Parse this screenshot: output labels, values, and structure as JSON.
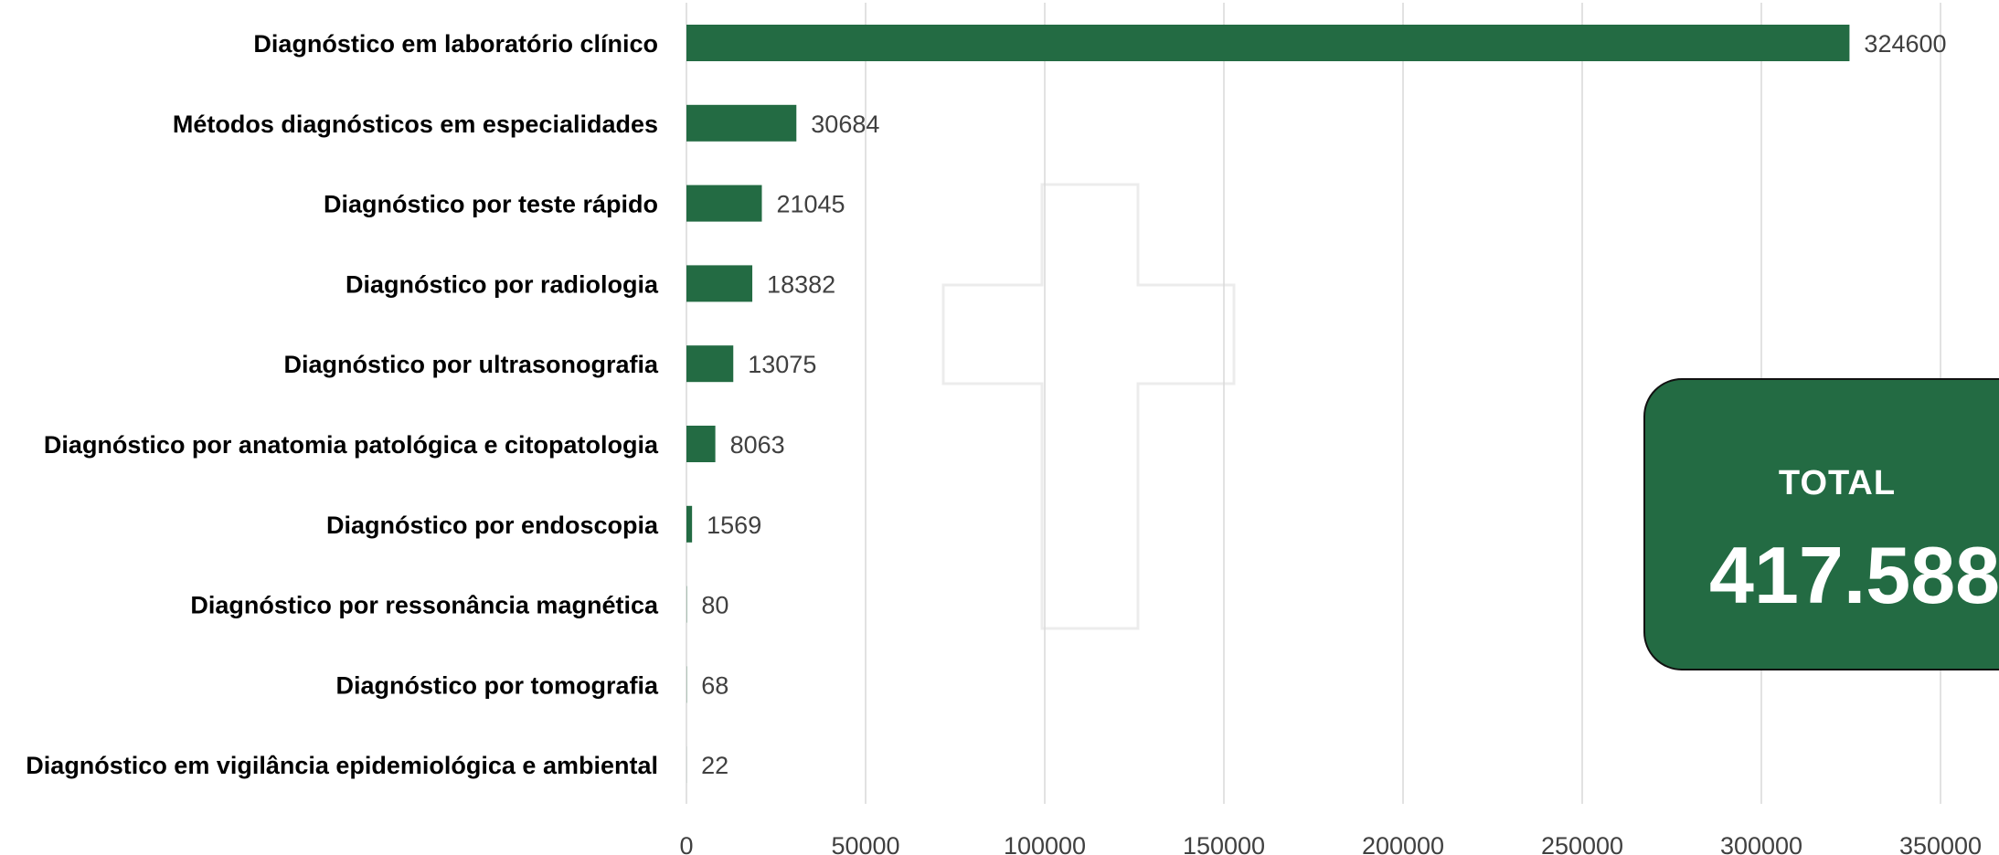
{
  "chart_data": {
    "type": "bar",
    "orientation": "horizontal",
    "categories": [
      "Diagnóstico em laboratório clínico",
      "Métodos diagnósticos em especialidades",
      "Diagnóstico por teste rápido",
      "Diagnóstico por radiologia",
      "Diagnóstico por ultrasonografia",
      "Diagnóstico por anatomia patológica e citopatologia",
      "Diagnóstico por endoscopia",
      "Diagnóstico por ressonância magnética",
      "Diagnóstico por tomografia",
      "Diagnóstico em vigilância epidemiológica e ambiental"
    ],
    "values": [
      324600,
      30684,
      21045,
      18382,
      13075,
      8063,
      1569,
      80,
      68,
      22
    ],
    "data_labels": [
      "324600",
      "30684",
      "21045",
      "18382",
      "13075",
      "8063",
      "1569",
      "80",
      "68",
      "22"
    ],
    "xlim": [
      0,
      350000
    ],
    "xticks": [
      0,
      50000,
      100000,
      150000,
      200000,
      250000,
      300000,
      350000
    ],
    "xtick_labels": [
      "0",
      "50000",
      "100000",
      "150000",
      "200000",
      "250000",
      "300000",
      "350000"
    ],
    "grid": "vertical",
    "bar_color": "#236b43"
  },
  "total_box": {
    "label": "TOTAL",
    "value": "417.588",
    "background": "#236b43"
  }
}
